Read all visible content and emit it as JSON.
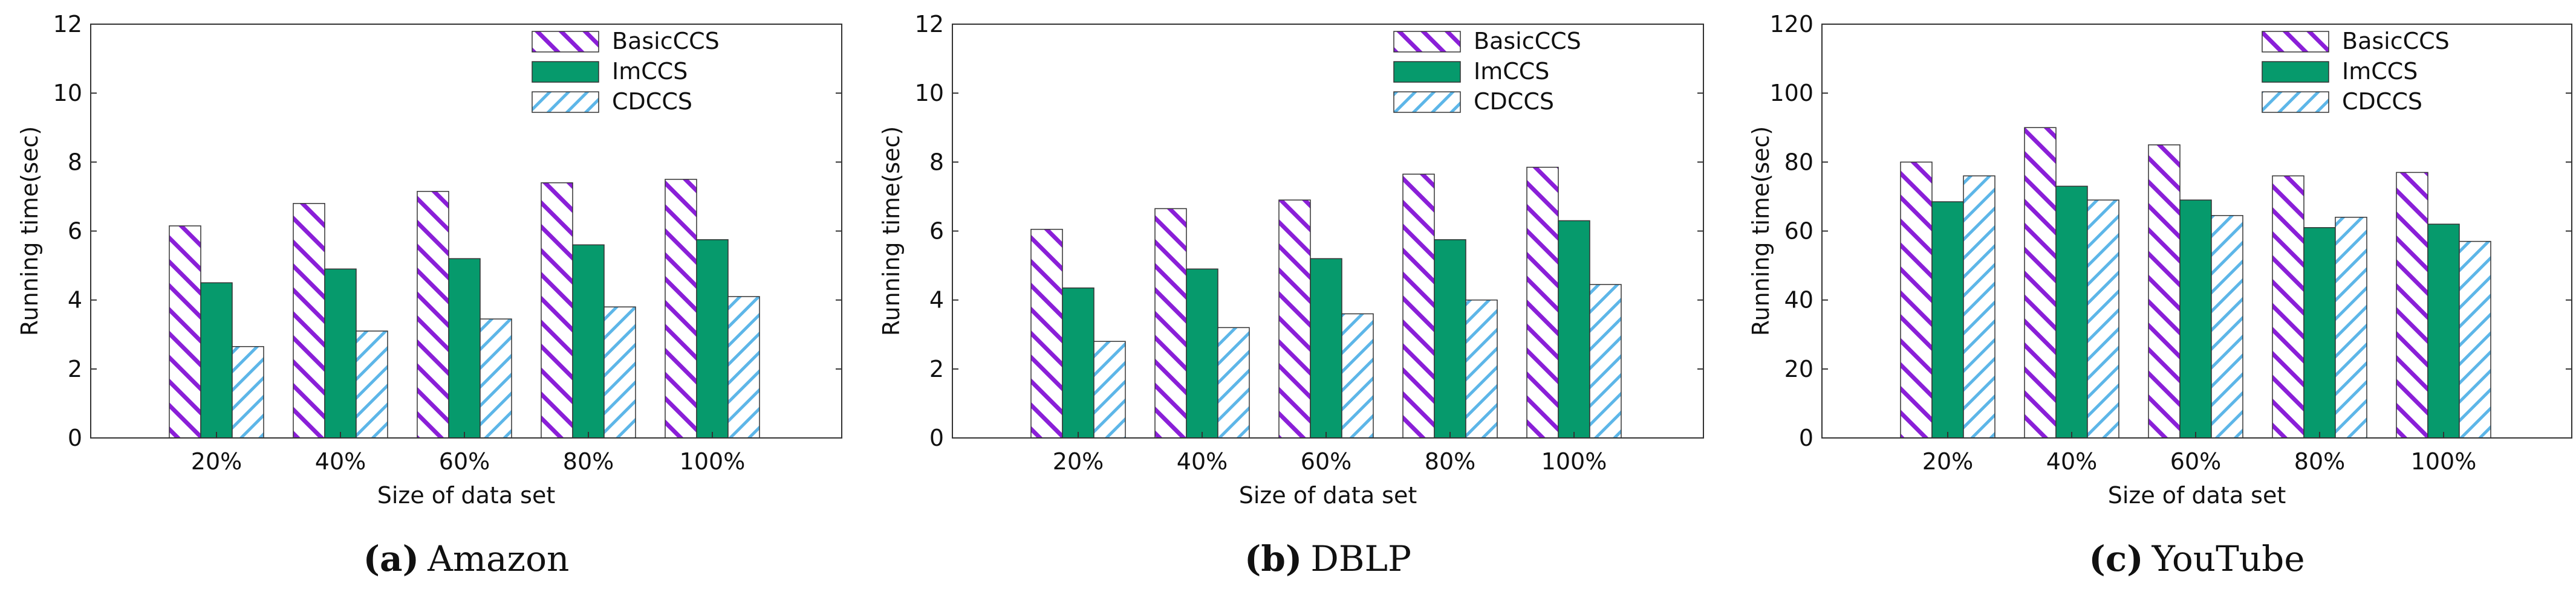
{
  "colors": {
    "basic": "#8a1fd8",
    "imccs": "#069a6c",
    "cdccs": "#5db6e8",
    "axis": "#333333",
    "grid": "#dddddd"
  },
  "chart_data": [
    {
      "type": "bar",
      "caption_letter": "(a)",
      "caption_name": "Amazon",
      "xlabel": "Size of data set",
      "ylabel": "Running time(sec)",
      "categories": [
        "20%",
        "40%",
        "60%",
        "80%",
        "100%"
      ],
      "ylim": [
        0,
        12
      ],
      "yticks": [
        "0",
        "2",
        "4",
        "6",
        "8",
        "10",
        "12"
      ],
      "grid": false,
      "legend_position": "top-right",
      "series": [
        {
          "name": "BasicCCS",
          "values": [
            6.15,
            6.8,
            7.15,
            7.4,
            7.5
          ]
        },
        {
          "name": "ImCCS",
          "values": [
            4.5,
            4.9,
            5.2,
            5.6,
            5.75
          ]
        },
        {
          "name": "CDCCS",
          "values": [
            2.65,
            3.1,
            3.45,
            3.8,
            4.1
          ]
        }
      ]
    },
    {
      "type": "bar",
      "caption_letter": "(b)",
      "caption_name": "DBLP",
      "xlabel": "Size of data set",
      "ylabel": "Running time(sec)",
      "categories": [
        "20%",
        "40%",
        "60%",
        "80%",
        "100%"
      ],
      "ylim": [
        0,
        12
      ],
      "yticks": [
        "0",
        "2",
        "4",
        "6",
        "8",
        "10",
        "12"
      ],
      "grid": false,
      "legend_position": "top-right",
      "series": [
        {
          "name": "BasicCCS",
          "values": [
            6.05,
            6.65,
            6.9,
            7.65,
            7.85
          ]
        },
        {
          "name": "ImCCS",
          "values": [
            4.35,
            4.9,
            5.2,
            5.75,
            6.3
          ]
        },
        {
          "name": "CDCCS",
          "values": [
            2.8,
            3.2,
            3.6,
            4.0,
            4.45
          ]
        }
      ]
    },
    {
      "type": "bar",
      "caption_letter": "(c)",
      "caption_name": "YouTube",
      "xlabel": "Size of data set",
      "ylabel": "Running time(sec)",
      "categories": [
        "20%",
        "40%",
        "60%",
        "80%",
        "100%"
      ],
      "ylim": [
        0,
        120
      ],
      "yticks": [
        "0",
        "20",
        "40",
        "60",
        "80",
        "100",
        "120"
      ],
      "grid": false,
      "legend_position": "top-right",
      "series": [
        {
          "name": "BasicCCS",
          "values": [
            80,
            90,
            85,
            76,
            77
          ]
        },
        {
          "name": "ImCCS",
          "values": [
            68.5,
            73,
            69,
            61,
            62
          ]
        },
        {
          "name": "CDCCS",
          "values": [
            76,
            69,
            64.5,
            64,
            57
          ]
        }
      ]
    }
  ]
}
